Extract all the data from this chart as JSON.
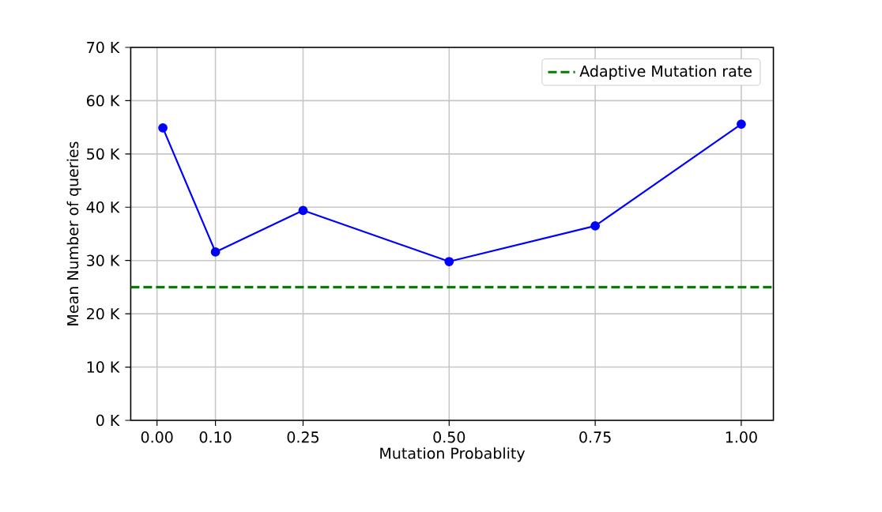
{
  "chart_data": {
    "type": "line",
    "xlabel": "Mutation Probablity",
    "ylabel": "Mean Number of queries",
    "x": [
      0.01,
      0.1,
      0.25,
      0.5,
      0.75,
      1.0
    ],
    "series": [
      {
        "color": "#0000ff",
        "values": [
          54900,
          31600,
          39400,
          29800,
          36500,
          55600
        ]
      }
    ],
    "marker": "circle",
    "line_style": "solid",
    "xlim": [
      -0.045,
      1.055
    ],
    "xticks": [
      {
        "value": 0,
        "label": "0.00"
      },
      {
        "value": 0.1,
        "label": "0.10"
      },
      {
        "value": 0.25,
        "label": "0.25"
      },
      {
        "value": 0.5,
        "label": "0.50"
      },
      {
        "value": 0.75,
        "label": "0.75"
      },
      {
        "value": 1.0,
        "label": "1.00"
      }
    ],
    "ylim": [
      0,
      70000
    ],
    "yticks": [
      {
        "value": 0,
        "label": "0 K"
      },
      {
        "value": 10000,
        "label": "10 K"
      },
      {
        "value": 20000,
        "label": "20 K"
      },
      {
        "value": 30000,
        "label": "30 K"
      },
      {
        "value": 40000,
        "label": "40 K"
      },
      {
        "value": 50000,
        "label": "50 K"
      },
      {
        "value": 60000,
        "label": "60 K"
      },
      {
        "value": 70000,
        "label": "70 K"
      }
    ],
    "ref_lines": [
      {
        "axis": "y",
        "value": 25000,
        "label": "Adaptive Mutation rate",
        "color": "#008000",
        "line_style": "dashed"
      }
    ],
    "grid": true,
    "legend": "top right"
  }
}
